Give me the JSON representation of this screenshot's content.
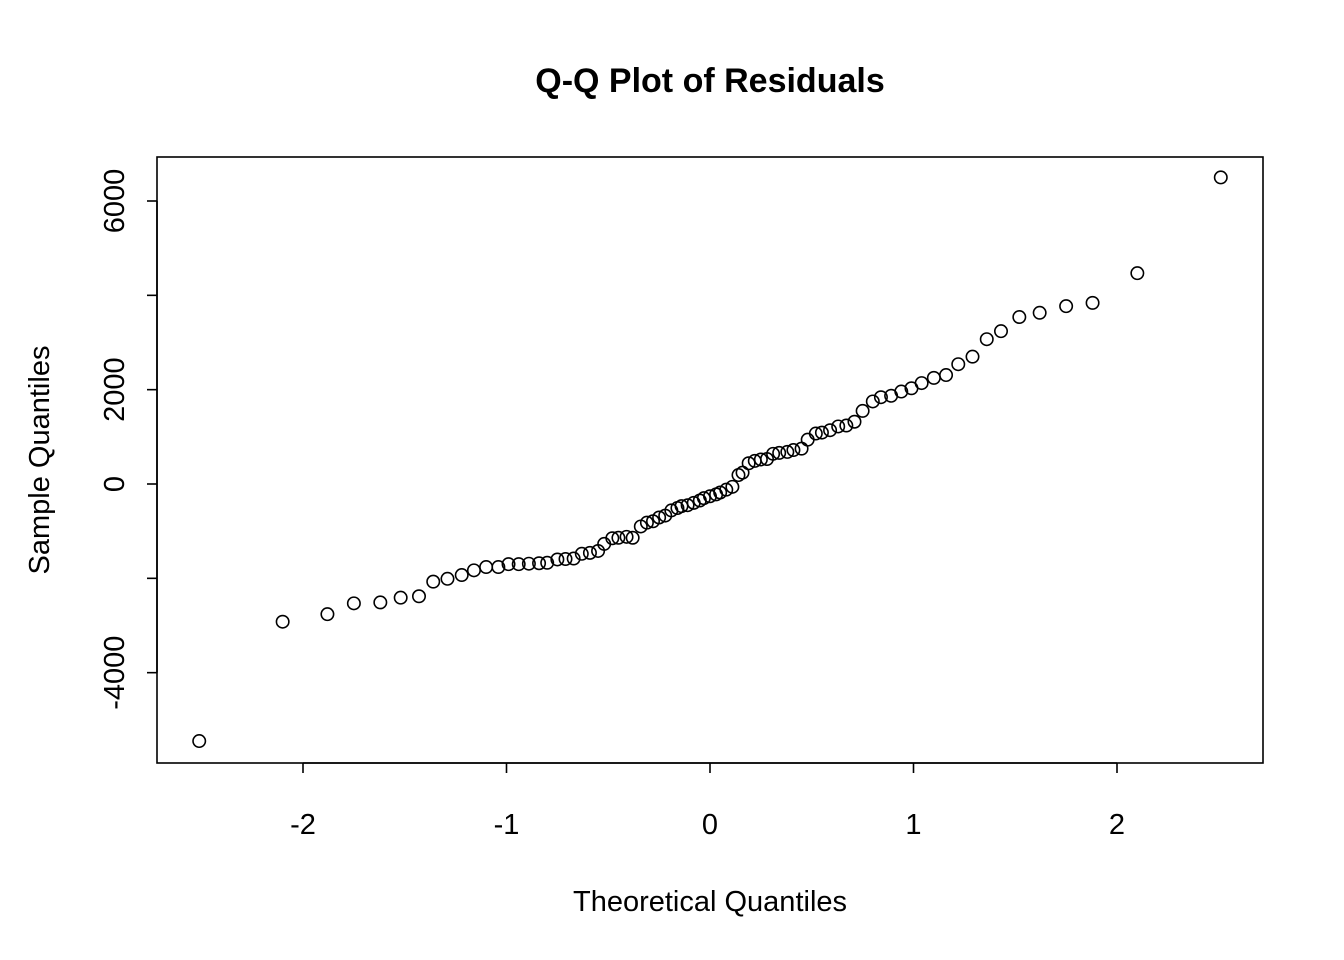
{
  "chart_data": {
    "type": "scatter",
    "title": "Q-Q Plot of Residuals",
    "xlabel": "Theoretical Quantiles",
    "ylabel": "Sample Quantiles",
    "xlim": [
      -2.72,
      2.72
    ],
    "ylim": [
      -6000,
      6900
    ],
    "x_ticks": [
      -2,
      -1,
      0,
      1,
      2
    ],
    "x_tick_labels": [
      "-2",
      "-1",
      "0",
      "1",
      "2"
    ],
    "y_ticks": [
      -4000,
      -2000,
      0,
      2000,
      4000,
      6000
    ],
    "y_tick_labels": [
      "-4000",
      "",
      "0",
      "2000",
      "",
      "6000"
    ],
    "grid": false,
    "legend": "none",
    "colors": {
      "points": "#000000",
      "frame": "#000000",
      "background": "#ffffff"
    },
    "points": [
      [
        -2.51,
        -5450
      ],
      [
        -2.1,
        -2920
      ],
      [
        -1.88,
        -2760
      ],
      [
        -1.75,
        -2530
      ],
      [
        -1.62,
        -2510
      ],
      [
        -1.52,
        -2410
      ],
      [
        -1.43,
        -2380
      ],
      [
        -1.36,
        -2070
      ],
      [
        -1.29,
        -2010
      ],
      [
        -1.22,
        -1930
      ],
      [
        -1.16,
        -1830
      ],
      [
        -1.1,
        -1760
      ],
      [
        -1.04,
        -1760
      ],
      [
        -0.99,
        -1700
      ],
      [
        -0.94,
        -1700
      ],
      [
        -0.89,
        -1690
      ],
      [
        -0.84,
        -1680
      ],
      [
        -0.8,
        -1670
      ],
      [
        -0.75,
        -1600
      ],
      [
        -0.71,
        -1590
      ],
      [
        -0.67,
        -1580
      ],
      [
        -0.63,
        -1480
      ],
      [
        -0.59,
        -1460
      ],
      [
        -0.55,
        -1420
      ],
      [
        -0.52,
        -1270
      ],
      [
        -0.48,
        -1150
      ],
      [
        -0.45,
        -1140
      ],
      [
        -0.41,
        -1120
      ],
      [
        -0.38,
        -1140
      ],
      [
        -0.34,
        -900
      ],
      [
        -0.31,
        -820
      ],
      [
        -0.28,
        -790
      ],
      [
        -0.25,
        -710
      ],
      [
        -0.22,
        -670
      ],
      [
        -0.19,
        -560
      ],
      [
        -0.16,
        -510
      ],
      [
        -0.14,
        -470
      ],
      [
        -0.11,
        -450
      ],
      [
        -0.08,
        -400
      ],
      [
        -0.05,
        -350
      ],
      [
        -0.03,
        -300
      ],
      [
        0.0,
        -260
      ],
      [
        0.03,
        -220
      ],
      [
        0.05,
        -180
      ],
      [
        0.08,
        -120
      ],
      [
        0.11,
        -60
      ],
      [
        0.14,
        190
      ],
      [
        0.16,
        240
      ],
      [
        0.19,
        440
      ],
      [
        0.22,
        490
      ],
      [
        0.25,
        520
      ],
      [
        0.28,
        530
      ],
      [
        0.31,
        640
      ],
      [
        0.34,
        660
      ],
      [
        0.38,
        680
      ],
      [
        0.41,
        720
      ],
      [
        0.45,
        750
      ],
      [
        0.48,
        940
      ],
      [
        0.52,
        1070
      ],
      [
        0.55,
        1090
      ],
      [
        0.59,
        1140
      ],
      [
        0.63,
        1220
      ],
      [
        0.67,
        1240
      ],
      [
        0.71,
        1320
      ],
      [
        0.75,
        1550
      ],
      [
        0.8,
        1750
      ],
      [
        0.84,
        1840
      ],
      [
        0.89,
        1870
      ],
      [
        0.94,
        1960
      ],
      [
        0.99,
        2030
      ],
      [
        1.04,
        2140
      ],
      [
        1.1,
        2250
      ],
      [
        1.16,
        2310
      ],
      [
        1.22,
        2540
      ],
      [
        1.29,
        2700
      ],
      [
        1.36,
        3070
      ],
      [
        1.43,
        3240
      ],
      [
        1.52,
        3540
      ],
      [
        1.62,
        3630
      ],
      [
        1.75,
        3770
      ],
      [
        1.88,
        3840
      ],
      [
        2.1,
        4470
      ],
      [
        2.51,
        6500
      ]
    ]
  }
}
